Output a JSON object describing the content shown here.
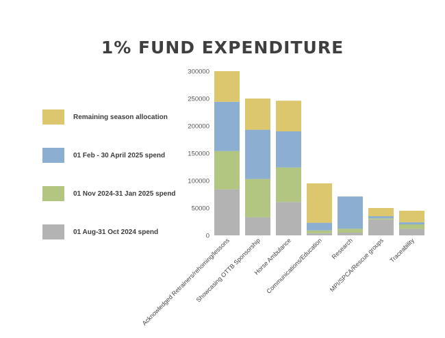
{
  "chart_data": {
    "type": "bar",
    "stacked": true,
    "title": "1% FUND EXPENDITURE",
    "xlabel": "",
    "ylabel": "",
    "ylim": [
      0,
      300000
    ],
    "yticks": [
      0,
      50000,
      100000,
      150000,
      200000,
      250000,
      300000
    ],
    "grid": false,
    "legend_position": "left",
    "categories": [
      "Acknowledged Retrainers/rehoming/lessons",
      "Showcasing OTTB Sponsorship",
      "Horse Ambulance",
      "Communications/Education",
      "Research",
      "MPI/SPCA/Rescue groups",
      "Traceability"
    ],
    "series": [
      {
        "name": "01 Aug-31 Oct 2024 spend",
        "color": "#b3b3b3",
        "values": [
          84000,
          33000,
          61000,
          4000,
          5000,
          29000,
          12000
        ]
      },
      {
        "name": "01 Nov 2024-31 Jan 2025 spend",
        "color": "#b2c681",
        "values": [
          70000,
          70000,
          63000,
          5000,
          7000,
          2000,
          8000
        ]
      },
      {
        "name": "01 Feb - 30 April 2025 spend",
        "color": "#8caed0",
        "values": [
          90000,
          90000,
          66000,
          14000,
          59000,
          4000,
          4000
        ]
      },
      {
        "name": "Remaining season allocation",
        "color": "#dcc66e",
        "values": [
          56000,
          57000,
          56000,
          72000,
          0,
          15000,
          21000
        ]
      }
    ]
  }
}
